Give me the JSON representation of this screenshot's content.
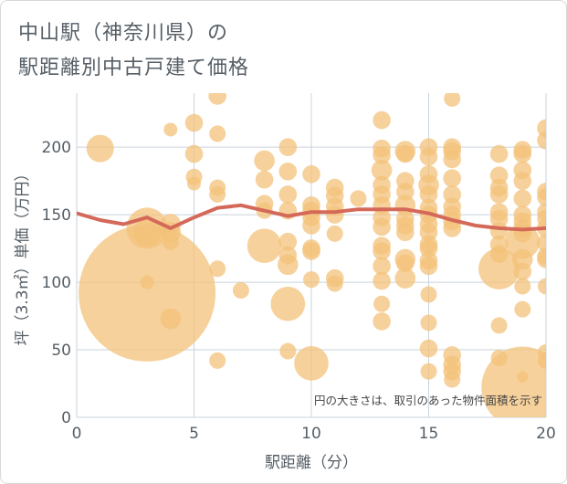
{
  "title_line1": "中山駅（神奈川県）の",
  "title_line2": "駅距離別中古戸建て価格",
  "chart_data": {
    "type": "scatter",
    "title": "中山駅（神奈川県）の駅距離別中古戸建て価格",
    "xlabel": "駅距離（分）",
    "ylabel": "坪（3.3㎡）単価（万円）",
    "xlim": [
      0,
      20
    ],
    "ylim": [
      0,
      240
    ],
    "xticks": [
      0,
      5,
      10,
      15,
      20
    ],
    "yticks": [
      0,
      50,
      100,
      150,
      200
    ],
    "annotation": "円の大きさは、取引のあった物件面積を示す",
    "bubble_color": "#f3c27a",
    "trend_color": "#d4695a",
    "points": [
      {
        "x": 1,
        "y": 199,
        "s": 2
      },
      {
        "x": 3,
        "y": 92,
        "s": 10
      },
      {
        "x": 3,
        "y": 100,
        "s": 1
      },
      {
        "x": 3,
        "y": 140,
        "s": 3
      },
      {
        "x": 3,
        "y": 137,
        "s": 2
      },
      {
        "x": 4,
        "y": 213,
        "s": 1
      },
      {
        "x": 4,
        "y": 143,
        "s": 1.5
      },
      {
        "x": 4,
        "y": 137,
        "s": 1.5
      },
      {
        "x": 4,
        "y": 130,
        "s": 1.2
      },
      {
        "x": 4,
        "y": 73,
        "s": 1.5
      },
      {
        "x": 5,
        "y": 218,
        "s": 1.3
      },
      {
        "x": 5,
        "y": 195,
        "s": 1.3
      },
      {
        "x": 5,
        "y": 178,
        "s": 1.2
      },
      {
        "x": 5,
        "y": 173,
        "s": 1
      },
      {
        "x": 6,
        "y": 238,
        "s": 1.3
      },
      {
        "x": 6,
        "y": 210,
        "s": 1.2
      },
      {
        "x": 6,
        "y": 170,
        "s": 1.2
      },
      {
        "x": 6,
        "y": 165,
        "s": 1.2
      },
      {
        "x": 6,
        "y": 110,
        "s": 1.2
      },
      {
        "x": 6,
        "y": 42,
        "s": 1.2
      },
      {
        "x": 7,
        "y": 94,
        "s": 1.2
      },
      {
        "x": 8,
        "y": 190,
        "s": 1.5
      },
      {
        "x": 8,
        "y": 176,
        "s": 1.3
      },
      {
        "x": 8,
        "y": 158,
        "s": 1.3
      },
      {
        "x": 8,
        "y": 153,
        "s": 1.2
      },
      {
        "x": 8,
        "y": 127,
        "s": 2.5
      },
      {
        "x": 9,
        "y": 200,
        "s": 1.3
      },
      {
        "x": 9,
        "y": 182,
        "s": 1.3
      },
      {
        "x": 9,
        "y": 165,
        "s": 1.3
      },
      {
        "x": 9,
        "y": 153,
        "s": 1.3
      },
      {
        "x": 9,
        "y": 130,
        "s": 1.3
      },
      {
        "x": 9,
        "y": 120,
        "s": 1.3
      },
      {
        "x": 9,
        "y": 113,
        "s": 1.5
      },
      {
        "x": 9,
        "y": 84,
        "s": 2.5
      },
      {
        "x": 9,
        "y": 49,
        "s": 1.2
      },
      {
        "x": 10,
        "y": 180,
        "s": 1.3
      },
      {
        "x": 10,
        "y": 157,
        "s": 1.3
      },
      {
        "x": 10,
        "y": 153,
        "s": 1.3
      },
      {
        "x": 10,
        "y": 148,
        "s": 1.3
      },
      {
        "x": 10,
        "y": 142,
        "s": 1.3
      },
      {
        "x": 10,
        "y": 125,
        "s": 1.3
      },
      {
        "x": 10,
        "y": 123,
        "s": 1.3
      },
      {
        "x": 10,
        "y": 102,
        "s": 1.2
      },
      {
        "x": 10,
        "y": 40,
        "s": 2.5
      },
      {
        "x": 11,
        "y": 170,
        "s": 1.3
      },
      {
        "x": 11,
        "y": 164,
        "s": 1.3
      },
      {
        "x": 11,
        "y": 156,
        "s": 1.3
      },
      {
        "x": 11,
        "y": 150,
        "s": 1.3
      },
      {
        "x": 11,
        "y": 136,
        "s": 1.2
      },
      {
        "x": 11,
        "y": 103,
        "s": 1.3
      },
      {
        "x": 11,
        "y": 99,
        "s": 1.2
      },
      {
        "x": 12,
        "y": 162,
        "s": 1.2
      },
      {
        "x": 13,
        "y": 220,
        "s": 1.3
      },
      {
        "x": 13,
        "y": 199,
        "s": 1.3
      },
      {
        "x": 13,
        "y": 194,
        "s": 1.3
      },
      {
        "x": 13,
        "y": 183,
        "s": 1.5
      },
      {
        "x": 13,
        "y": 172,
        "s": 1.3
      },
      {
        "x": 13,
        "y": 165,
        "s": 1.3
      },
      {
        "x": 13,
        "y": 157,
        "s": 1.3
      },
      {
        "x": 13,
        "y": 148,
        "s": 1.3
      },
      {
        "x": 13,
        "y": 141,
        "s": 1.3
      },
      {
        "x": 13,
        "y": 127,
        "s": 1.3
      },
      {
        "x": 13,
        "y": 123,
        "s": 1.3
      },
      {
        "x": 13,
        "y": 112,
        "s": 1.3
      },
      {
        "x": 13,
        "y": 101,
        "s": 1.3
      },
      {
        "x": 13,
        "y": 84,
        "s": 1.2
      },
      {
        "x": 13,
        "y": 71,
        "s": 1.3
      },
      {
        "x": 14,
        "y": 197,
        "s": 1.5
      },
      {
        "x": 14,
        "y": 195,
        "s": 1.3
      },
      {
        "x": 14,
        "y": 175,
        "s": 1.3
      },
      {
        "x": 14,
        "y": 167,
        "s": 1.3
      },
      {
        "x": 14,
        "y": 157,
        "s": 1.5
      },
      {
        "x": 14,
        "y": 147,
        "s": 1.3
      },
      {
        "x": 14,
        "y": 142,
        "s": 1.3
      },
      {
        "x": 14,
        "y": 137,
        "s": 1.3
      },
      {
        "x": 14,
        "y": 117,
        "s": 1.5
      },
      {
        "x": 14,
        "y": 114,
        "s": 1.3
      },
      {
        "x": 14,
        "y": 103,
        "s": 1.5
      },
      {
        "x": 15,
        "y": 200,
        "s": 1.3
      },
      {
        "x": 15,
        "y": 193,
        "s": 1.3
      },
      {
        "x": 15,
        "y": 180,
        "s": 1.3
      },
      {
        "x": 15,
        "y": 172,
        "s": 1.5
      },
      {
        "x": 15,
        "y": 165,
        "s": 1.3
      },
      {
        "x": 15,
        "y": 155,
        "s": 1.3
      },
      {
        "x": 15,
        "y": 150,
        "s": 1.3
      },
      {
        "x": 15,
        "y": 143,
        "s": 1.3
      },
      {
        "x": 15,
        "y": 137,
        "s": 1.3
      },
      {
        "x": 15,
        "y": 128,
        "s": 1.3
      },
      {
        "x": 15,
        "y": 125,
        "s": 1.3
      },
      {
        "x": 15,
        "y": 116,
        "s": 1.3
      },
      {
        "x": 15,
        "y": 112,
        "s": 1.3
      },
      {
        "x": 15,
        "y": 91,
        "s": 1.2
      },
      {
        "x": 15,
        "y": 70,
        "s": 1.2
      },
      {
        "x": 15,
        "y": 51,
        "s": 1.3
      },
      {
        "x": 15,
        "y": 34,
        "s": 1.2
      },
      {
        "x": 16,
        "y": 236,
        "s": 1.2
      },
      {
        "x": 16,
        "y": 200,
        "s": 1.3
      },
      {
        "x": 16,
        "y": 197,
        "s": 1.3
      },
      {
        "x": 16,
        "y": 191,
        "s": 1.3
      },
      {
        "x": 16,
        "y": 177,
        "s": 1.3
      },
      {
        "x": 16,
        "y": 165,
        "s": 1.3
      },
      {
        "x": 16,
        "y": 156,
        "s": 1.3
      },
      {
        "x": 16,
        "y": 150,
        "s": 1.3
      },
      {
        "x": 16,
        "y": 145,
        "s": 1.3
      },
      {
        "x": 16,
        "y": 140,
        "s": 1.3
      },
      {
        "x": 16,
        "y": 46,
        "s": 1.3
      },
      {
        "x": 16,
        "y": 39,
        "s": 1.3
      },
      {
        "x": 16,
        "y": 34,
        "s": 1.3
      },
      {
        "x": 16,
        "y": 28,
        "s": 1.2
      },
      {
        "x": 18,
        "y": 195,
        "s": 1.3
      },
      {
        "x": 18,
        "y": 179,
        "s": 1.3
      },
      {
        "x": 18,
        "y": 170,
        "s": 1.3
      },
      {
        "x": 18,
        "y": 165,
        "s": 1.3
      },
      {
        "x": 18,
        "y": 152,
        "s": 1.3
      },
      {
        "x": 18,
        "y": 147,
        "s": 1.3
      },
      {
        "x": 18,
        "y": 138,
        "s": 1.3
      },
      {
        "x": 18,
        "y": 128,
        "s": 1.3
      },
      {
        "x": 18,
        "y": 121,
        "s": 1.3
      },
      {
        "x": 18,
        "y": 110,
        "s": 3
      },
      {
        "x": 18,
        "y": 68,
        "s": 1.2
      },
      {
        "x": 18,
        "y": 44,
        "s": 1.2
      },
      {
        "x": 19,
        "y": 198,
        "s": 1.3
      },
      {
        "x": 19,
        "y": 195,
        "s": 1.3
      },
      {
        "x": 19,
        "y": 183,
        "s": 1.3
      },
      {
        "x": 19,
        "y": 175,
        "s": 1.3
      },
      {
        "x": 19,
        "y": 162,
        "s": 1.3
      },
      {
        "x": 19,
        "y": 150,
        "s": 1.3
      },
      {
        "x": 19,
        "y": 145,
        "s": 1.3
      },
      {
        "x": 19,
        "y": 140,
        "s": 1.3
      },
      {
        "x": 19,
        "y": 136,
        "s": 1.3
      },
      {
        "x": 19,
        "y": 130,
        "s": 2.5
      },
      {
        "x": 19,
        "y": 117,
        "s": 1.5
      },
      {
        "x": 19,
        "y": 108,
        "s": 1.3
      },
      {
        "x": 19,
        "y": 97,
        "s": 1.2
      },
      {
        "x": 19,
        "y": 80,
        "s": 1.2
      },
      {
        "x": 19,
        "y": 22,
        "s": 6
      },
      {
        "x": 19,
        "y": 30,
        "s": 0.8
      },
      {
        "x": 20,
        "y": 214,
        "s": 1.3
      },
      {
        "x": 20,
        "y": 205,
        "s": 1.3
      },
      {
        "x": 20,
        "y": 167,
        "s": 1.3
      },
      {
        "x": 20,
        "y": 163,
        "s": 1.3
      },
      {
        "x": 20,
        "y": 152,
        "s": 1.3
      },
      {
        "x": 20,
        "y": 147,
        "s": 1.3
      },
      {
        "x": 20,
        "y": 140,
        "s": 1.3
      },
      {
        "x": 20,
        "y": 129,
        "s": 1.3
      },
      {
        "x": 20,
        "y": 119,
        "s": 1.3
      },
      {
        "x": 20,
        "y": 117,
        "s": 1.3
      },
      {
        "x": 20,
        "y": 97,
        "s": 1.2
      },
      {
        "x": 20,
        "y": 48,
        "s": 1.2
      },
      {
        "x": 20,
        "y": 42,
        "s": 1.2
      }
    ],
    "trend": {
      "name": "平均坪単価",
      "x": [
        0,
        1,
        2,
        3,
        4,
        5,
        6,
        7,
        8,
        9,
        10,
        11,
        12,
        13,
        14,
        15,
        16,
        17,
        18,
        19,
        20
      ],
      "y": [
        151,
        146,
        143,
        148,
        140,
        148,
        155,
        157,
        153,
        149,
        152,
        152,
        154,
        154,
        154,
        151,
        146,
        142,
        140,
        139,
        140
      ]
    }
  }
}
